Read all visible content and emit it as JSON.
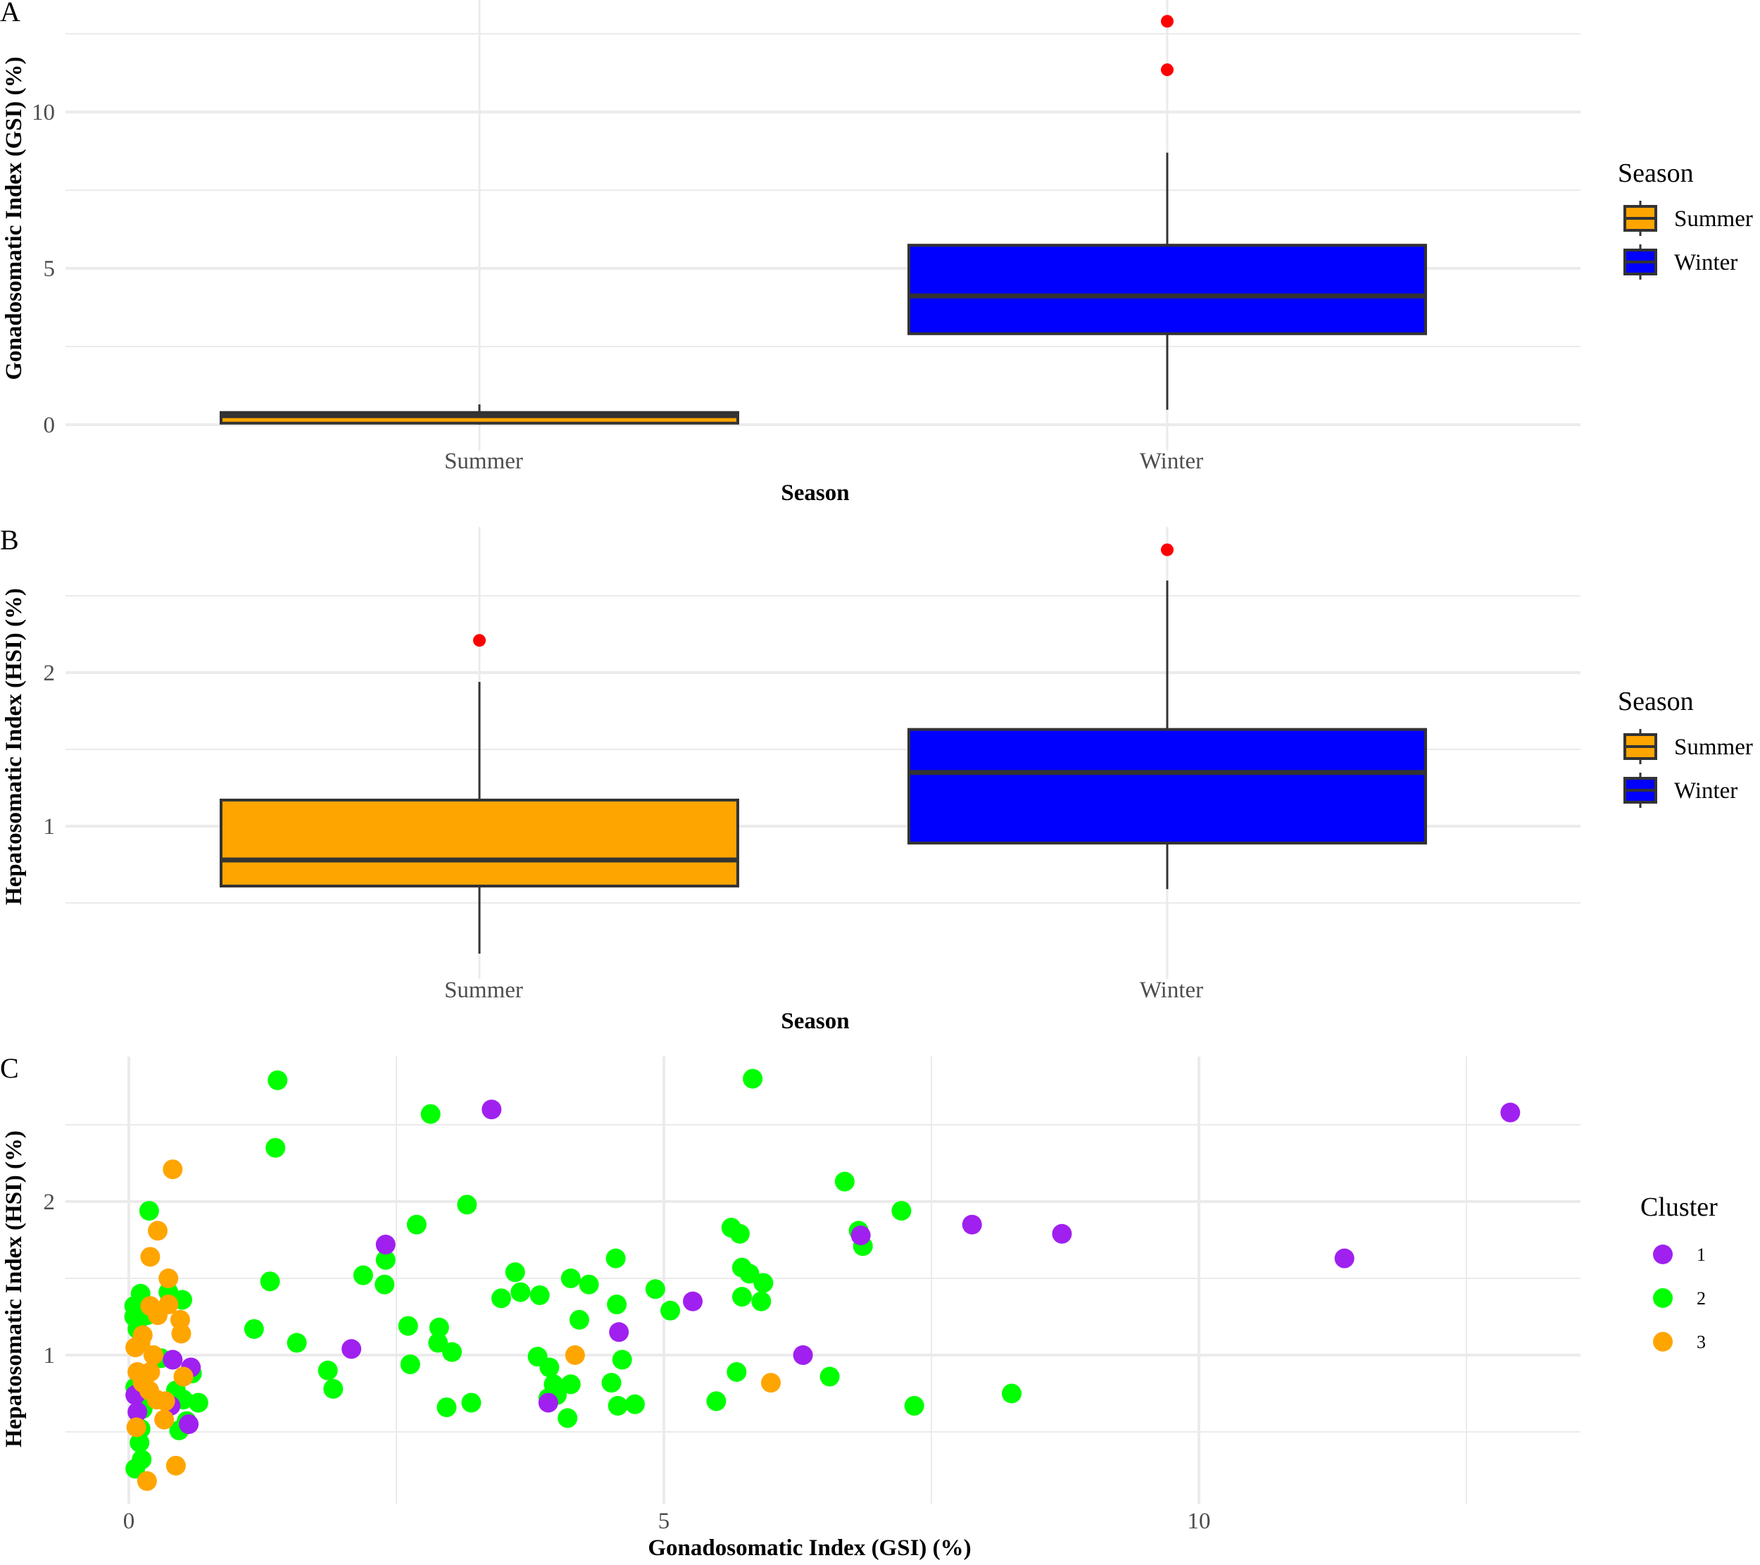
{
  "figure": {
    "panels": [
      "A",
      "B",
      "C"
    ]
  },
  "chart_data": [
    {
      "type": "box",
      "panel_label": "A",
      "title": "",
      "xlabel": "Season",
      "ylabel": "Gonadosomatic Index (GSI) (%)",
      "categories": [
        "Summer",
        "Winter"
      ],
      "yticks": [
        0,
        5,
        10
      ],
      "ylim": [
        -0.4,
        13.5
      ],
      "grid": true,
      "legend": {
        "title": "Season",
        "position": "right",
        "entries": [
          "Summer",
          "Winter"
        ]
      },
      "colors": {
        "Summer": "#FFA500",
        "Winter": "#0000FF",
        "outlier": "#FF0000",
        "line": "#333333"
      },
      "boxes": [
        {
          "category": "Summer",
          "min": 0.0,
          "q1": 0.05,
          "median": 0.29,
          "q3": 0.39,
          "max": 0.65,
          "outliers": []
        },
        {
          "category": "Winter",
          "min": 0.48,
          "q1": 2.91,
          "median": 4.12,
          "q3": 5.74,
          "max": 8.7,
          "outliers": [
            11.35,
            12.9
          ]
        }
      ]
    },
    {
      "type": "box",
      "panel_label": "B",
      "title": "",
      "xlabel": "Season",
      "ylabel": "Hepatosomatic Index (HSI) (%)",
      "categories": [
        "Summer",
        "Winter"
      ],
      "yticks": [
        1,
        2
      ],
      "ylim": [
        0.07,
        2.9
      ],
      "grid": true,
      "legend": {
        "title": "Season",
        "position": "right",
        "entries": [
          "Summer",
          "Winter"
        ]
      },
      "colors": {
        "Summer": "#FFA500",
        "Winter": "#0000FF",
        "outlier": "#FF0000",
        "line": "#333333"
      },
      "boxes": [
        {
          "category": "Summer",
          "min": 0.17,
          "q1": 0.61,
          "median": 0.78,
          "q3": 1.17,
          "max": 1.94,
          "outliers": [
            2.21
          ]
        },
        {
          "category": "Winter",
          "min": 0.59,
          "q1": 0.89,
          "median": 1.35,
          "q3": 1.63,
          "max": 2.6,
          "outliers": [
            2.8
          ]
        }
      ]
    },
    {
      "type": "scatter",
      "panel_label": "C",
      "title": "",
      "xlabel": "Gonadosomatic Index (GSI) (%)",
      "ylabel": "Hepatosomatic Index (HSI) (%)",
      "xticks": [
        0,
        5,
        10
      ],
      "yticks": [
        1,
        2
      ],
      "xlim": [
        -0.6,
        13.6
      ],
      "ylim": [
        0.07,
        2.9
      ],
      "grid": true,
      "legend": {
        "title": "Cluster",
        "position": "right",
        "entries": [
          "1",
          "2",
          "3"
        ]
      },
      "colors": {
        "1": "#A020F0",
        "2": "#00FF00",
        "3": "#FFA500"
      },
      "series": [
        {
          "name": "2",
          "points": [
            [
              0.19,
              1.94
            ],
            [
              0.11,
              1.4
            ],
            [
              0.37,
              1.41
            ],
            [
              0.5,
              1.36
            ],
            [
              0.05,
              1.32
            ],
            [
              0.17,
              1.26
            ],
            [
              0.05,
              1.25
            ],
            [
              0.08,
              1.17
            ],
            [
              0.3,
              0.98
            ],
            [
              0.59,
              0.88
            ],
            [
              0.06,
              0.79
            ],
            [
              0.13,
              0.71
            ],
            [
              0.44,
              0.77
            ],
            [
              0.51,
              0.71
            ],
            [
              0.65,
              0.69
            ],
            [
              0.54,
              0.57
            ],
            [
              0.47,
              0.51
            ],
            [
              0.11,
              0.52
            ],
            [
              0.1,
              0.43
            ],
            [
              0.12,
              0.32
            ],
            [
              0.06,
              0.26
            ],
            [
              0.13,
              0.65
            ],
            [
              1.39,
              2.79
            ],
            [
              2.82,
              2.57
            ],
            [
              5.83,
              2.8
            ],
            [
              1.37,
              2.35
            ],
            [
              3.16,
              1.98
            ],
            [
              2.69,
              1.85
            ],
            [
              2.4,
              1.62
            ],
            [
              2.19,
              1.52
            ],
            [
              2.39,
              1.46
            ],
            [
              1.32,
              1.48
            ],
            [
              1.17,
              1.17
            ],
            [
              1.57,
              1.08
            ],
            [
              1.86,
              0.9
            ],
            [
              1.91,
              0.78
            ],
            [
              2.61,
              1.19
            ],
            [
              2.63,
              0.94
            ],
            [
              2.9,
              1.18
            ],
            [
              2.89,
              1.08
            ],
            [
              3.02,
              1.02
            ],
            [
              2.97,
              0.66
            ],
            [
              3.2,
              0.69
            ],
            [
              3.61,
              1.54
            ],
            [
              3.48,
              1.37
            ],
            [
              3.66,
              1.41
            ],
            [
              3.84,
              1.39
            ],
            [
              4.13,
              1.5
            ],
            [
              4.3,
              1.46
            ],
            [
              4.55,
              1.63
            ],
            [
              4.56,
              1.33
            ],
            [
              4.21,
              1.23
            ],
            [
              4.92,
              1.43
            ],
            [
              5.06,
              1.29
            ],
            [
              3.82,
              0.99
            ],
            [
              3.93,
              0.92
            ],
            [
              4.61,
              0.97
            ],
            [
              4.13,
              0.81
            ],
            [
              3.97,
              0.81
            ],
            [
              4.51,
              0.82
            ],
            [
              3.92,
              0.72
            ],
            [
              4.0,
              0.74
            ],
            [
              4.1,
              0.59
            ],
            [
              4.57,
              0.67
            ],
            [
              4.73,
              0.68
            ],
            [
              5.49,
              0.7
            ],
            [
              5.68,
              0.89
            ],
            [
              5.63,
              1.83
            ],
            [
              5.71,
              1.79
            ],
            [
              5.73,
              1.57
            ],
            [
              5.8,
              1.53
            ],
            [
              5.93,
              1.47
            ],
            [
              5.73,
              1.38
            ],
            [
              5.91,
              1.35
            ],
            [
              7.22,
              1.94
            ],
            [
              6.69,
              2.13
            ],
            [
              6.82,
              1.81
            ],
            [
              6.86,
              1.71
            ],
            [
              6.55,
              0.86
            ],
            [
              7.34,
              0.67
            ],
            [
              8.25,
              0.75
            ]
          ]
        },
        {
          "name": "1",
          "points": [
            [
              0.41,
              0.97
            ],
            [
              0.58,
              0.92
            ],
            [
              0.06,
              0.74
            ],
            [
              0.39,
              0.67
            ],
            [
              0.08,
              0.63
            ],
            [
              0.56,
              0.55
            ],
            [
              3.39,
              2.6
            ],
            [
              2.4,
              1.72
            ],
            [
              2.08,
              1.04
            ],
            [
              4.58,
              1.15
            ],
            [
              5.27,
              1.35
            ],
            [
              3.92,
              0.69
            ],
            [
              6.84,
              1.78
            ],
            [
              7.88,
              1.85
            ],
            [
              8.72,
              1.79
            ],
            [
              11.36,
              1.63
            ],
            [
              12.91,
              2.58
            ],
            [
              6.3,
              1.0
            ]
          ]
        },
        {
          "name": "3",
          "points": [
            [
              0.41,
              2.21
            ],
            [
              0.27,
              1.81
            ],
            [
              0.2,
              1.64
            ],
            [
              0.37,
              1.5
            ],
            [
              0.2,
              1.32
            ],
            [
              0.37,
              1.33
            ],
            [
              0.27,
              1.26
            ],
            [
              0.48,
              1.23
            ],
            [
              0.49,
              1.14
            ],
            [
              0.13,
              1.13
            ],
            [
              0.06,
              1.05
            ],
            [
              0.11,
              1.08
            ],
            [
              0.23,
              1.0
            ],
            [
              0.51,
              0.86
            ],
            [
              0.08,
              0.89
            ],
            [
              0.2,
              0.89
            ],
            [
              0.13,
              0.82
            ],
            [
              0.19,
              0.77
            ],
            [
              0.34,
              0.7
            ],
            [
              0.26,
              0.71
            ],
            [
              0.33,
              0.58
            ],
            [
              0.07,
              0.53
            ],
            [
              0.44,
              0.28
            ],
            [
              0.17,
              0.18
            ],
            [
              4.17,
              1.0
            ],
            [
              6.0,
              0.82
            ]
          ]
        }
      ]
    }
  ]
}
